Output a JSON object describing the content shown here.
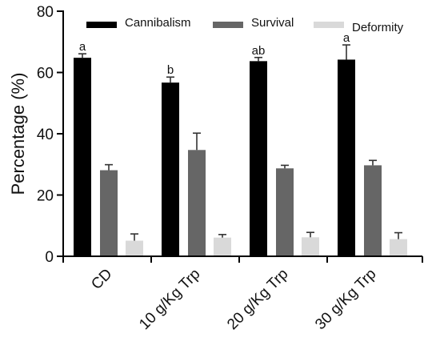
{
  "chart_data": {
    "type": "bar",
    "title": "",
    "xlabel": "",
    "ylabel": "Percentage (%)",
    "ylim": [
      0,
      80
    ],
    "yticks": [
      0,
      20,
      40,
      60,
      80
    ],
    "grid": false,
    "legend_position": "top",
    "categories": [
      "CD",
      "10 g/Kg Trp",
      "20 g/Kg Trp",
      "30 g/Kg Trp"
    ],
    "series": [
      {
        "name": "Cannibalism",
        "color": "#000000",
        "values": [
          64.8,
          56.7,
          63.7,
          64.2
        ],
        "errors": [
          1.3,
          1.8,
          1.2,
          4.8
        ],
        "labels": [
          "a",
          "b",
          "ab",
          "a"
        ]
      },
      {
        "name": "Survival",
        "color": "#666666",
        "values": [
          28.1,
          34.7,
          28.7,
          29.7
        ],
        "errors": [
          1.8,
          5.5,
          1.0,
          1.6
        ],
        "labels": [
          "",
          "",
          "",
          ""
        ]
      },
      {
        "name": "Deformity",
        "color": "#d9d9d9",
        "values": [
          5.1,
          6.1,
          6.2,
          5.6
        ],
        "errors": [
          2.2,
          1.0,
          1.6,
          2.1
        ],
        "labels": [
          "",
          "",
          "",
          ""
        ]
      }
    ]
  }
}
